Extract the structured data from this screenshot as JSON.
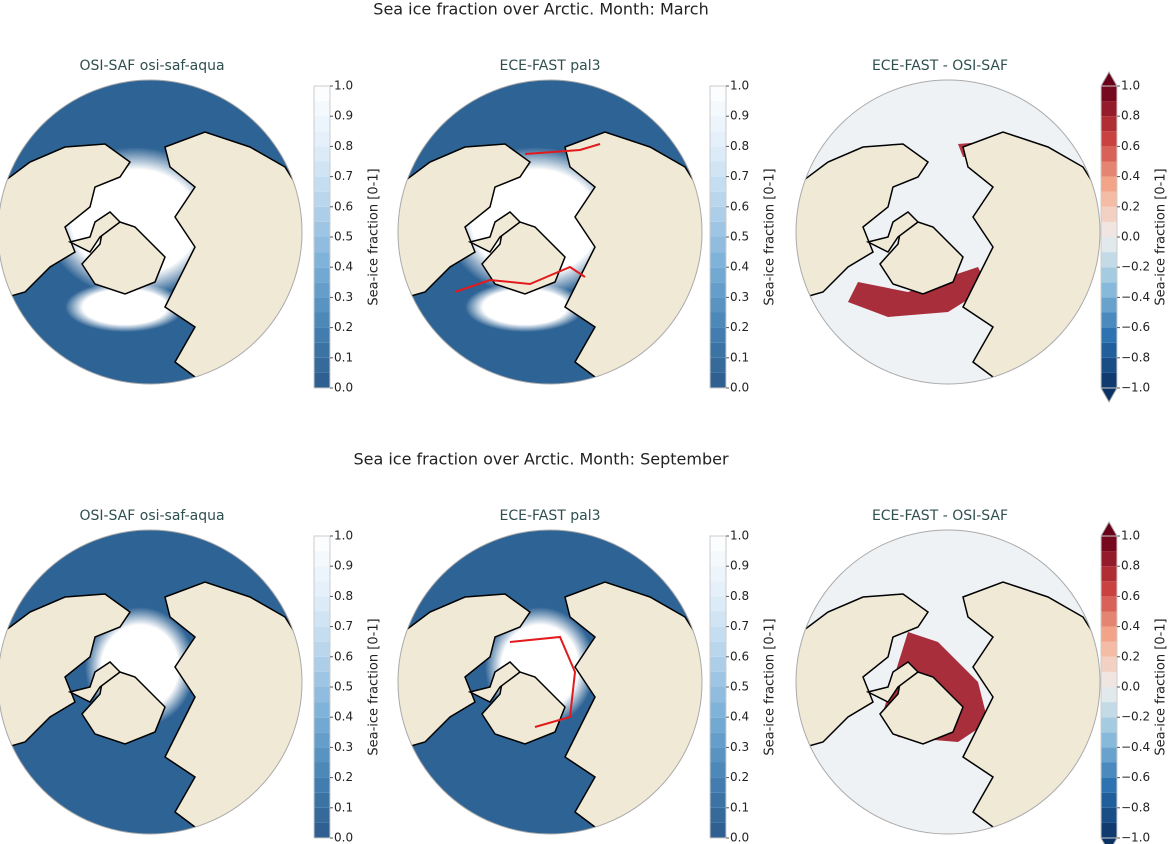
{
  "figures": [
    {
      "title": "Sea ice fraction over Arctic. Month: March",
      "panels": [
        {
          "title": "OSI-SAF osi-saf-aqua",
          "colormap": "blues",
          "extend": "neither",
          "month": "march",
          "colorbar": {
            "label": "Sea-ice fraction [0-1]",
            "range": [
              0,
              1
            ],
            "ticks": [
              {
                "value": 0,
                "label": "0.0"
              },
              0.1,
              0.2,
              0.3,
              0.4,
              0.5,
              0.6,
              0.7,
              0.8,
              0.9,
              {
                "value": 1,
                "label": "1.0"
              }
            ]
          }
        },
        {
          "title": "ECE-FAST pal3",
          "colormap": "blues",
          "extend": "neither",
          "month": "march",
          "contour_color": "#e31a1c",
          "colorbar": {
            "label": "Sea-ice fraction [0-1]",
            "range": [
              0,
              1
            ],
            "ticks": [
              {
                "value": 0,
                "label": "0.0"
              },
              0.1,
              0.2,
              0.3,
              0.4,
              0.5,
              0.6,
              0.7,
              0.8,
              0.9,
              {
                "value": 1,
                "label": "1.0"
              }
            ]
          }
        },
        {
          "title": "ECE-FAST -  OSI-SAF",
          "colormap": "diverging",
          "extend": "both",
          "month": "march",
          "colorbar": {
            "label": "Sea-ice fraction [0-1]",
            "range": [
              -1,
              1
            ],
            "ticks": [
              {
                "value": -1,
                "label": "−1.0"
              },
              {
                "value": -0.8,
                "label": "−0.8"
              },
              {
                "value": -0.6,
                "label": "−0.6"
              },
              {
                "value": -0.4,
                "label": "−0.4"
              },
              {
                "value": -0.2,
                "label": "−0.2"
              },
              {
                "value": 0,
                "label": "0.0"
              },
              0.2,
              0.4,
              0.6,
              0.8,
              {
                "value": 1,
                "label": "1.0"
              }
            ]
          }
        }
      ]
    },
    {
      "title": "Sea ice fraction over Arctic. Month: September",
      "panels": [
        {
          "title": "OSI-SAF osi-saf-aqua",
          "colormap": "blues",
          "extend": "neither",
          "month": "september",
          "colorbar": {
            "label": "Sea-ice fraction [0-1]",
            "range": [
              0,
              1
            ],
            "ticks": [
              {
                "value": 0,
                "label": "0.0"
              },
              0.1,
              0.2,
              0.3,
              0.4,
              0.5,
              0.6,
              0.7,
              0.8,
              0.9,
              {
                "value": 1,
                "label": "1.0"
              }
            ]
          }
        },
        {
          "title": "ECE-FAST pal3",
          "colormap": "blues",
          "extend": "neither",
          "month": "september",
          "contour_color": "#e31a1c",
          "colorbar": {
            "label": "Sea-ice fraction [0-1]",
            "range": [
              0,
              1
            ],
            "ticks": [
              {
                "value": 0,
                "label": "0.0"
              },
              0.1,
              0.2,
              0.3,
              0.4,
              0.5,
              0.6,
              0.7,
              0.8,
              0.9,
              {
                "value": 1,
                "label": "1.0"
              }
            ]
          }
        },
        {
          "title": "ECE-FAST -  OSI-SAF",
          "colormap": "diverging",
          "extend": "both",
          "month": "september",
          "colorbar": {
            "label": "Sea-ice fraction [0-1]",
            "range": [
              -1,
              1
            ],
            "ticks": [
              {
                "value": -1,
                "label": "−1.0"
              },
              {
                "value": -0.8,
                "label": "−0.8"
              },
              {
                "value": -0.6,
                "label": "−0.6"
              },
              {
                "value": -0.4,
                "label": "−0.4"
              },
              {
                "value": -0.2,
                "label": "−0.2"
              },
              {
                "value": 0,
                "label": "0.0"
              },
              0.2,
              0.4,
              0.6,
              0.8,
              {
                "value": 1,
                "label": "1.0"
              }
            ]
          }
        }
      ]
    }
  ]
}
